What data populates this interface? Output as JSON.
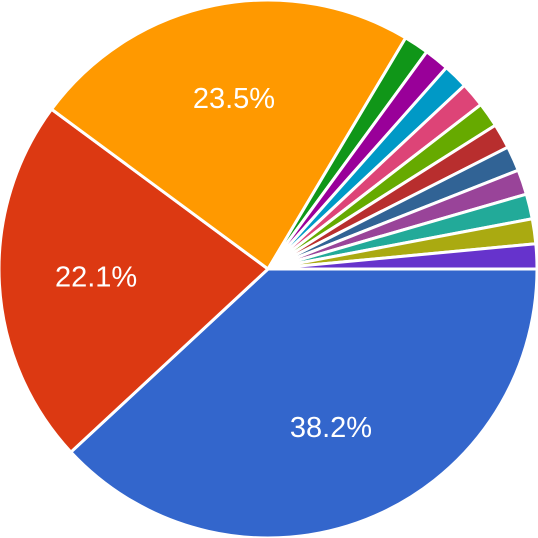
{
  "chart_data": {
    "type": "pie",
    "title": "",
    "slices": [
      {
        "value": 38.2,
        "label": "38.2%",
        "color": "#3366cc"
      },
      {
        "value": 22.1,
        "label": "22.1%",
        "color": "#dc3912"
      },
      {
        "value": 23.5,
        "label": "23.5%",
        "color": "#ff9900"
      },
      {
        "value": 1.5,
        "label": "",
        "color": "#109618"
      },
      {
        "value": 1.5,
        "label": "",
        "color": "#990099"
      },
      {
        "value": 1.5,
        "label": "",
        "color": "#0099c6"
      },
      {
        "value": 1.5,
        "label": "",
        "color": "#dd4477"
      },
      {
        "value": 1.5,
        "label": "",
        "color": "#66aa00"
      },
      {
        "value": 1.5,
        "label": "",
        "color": "#b82e2e"
      },
      {
        "value": 1.5,
        "label": "",
        "color": "#316395"
      },
      {
        "value": 1.5,
        "label": "",
        "color": "#994499"
      },
      {
        "value": 1.5,
        "label": "",
        "color": "#22aa99"
      },
      {
        "value": 1.5,
        "label": "",
        "color": "#aaaa11"
      },
      {
        "value": 1.5,
        "label": "",
        "color": "#6633cc"
      }
    ],
    "start_angle_deg": 0,
    "direction": "clockwise",
    "legend": "none"
  }
}
